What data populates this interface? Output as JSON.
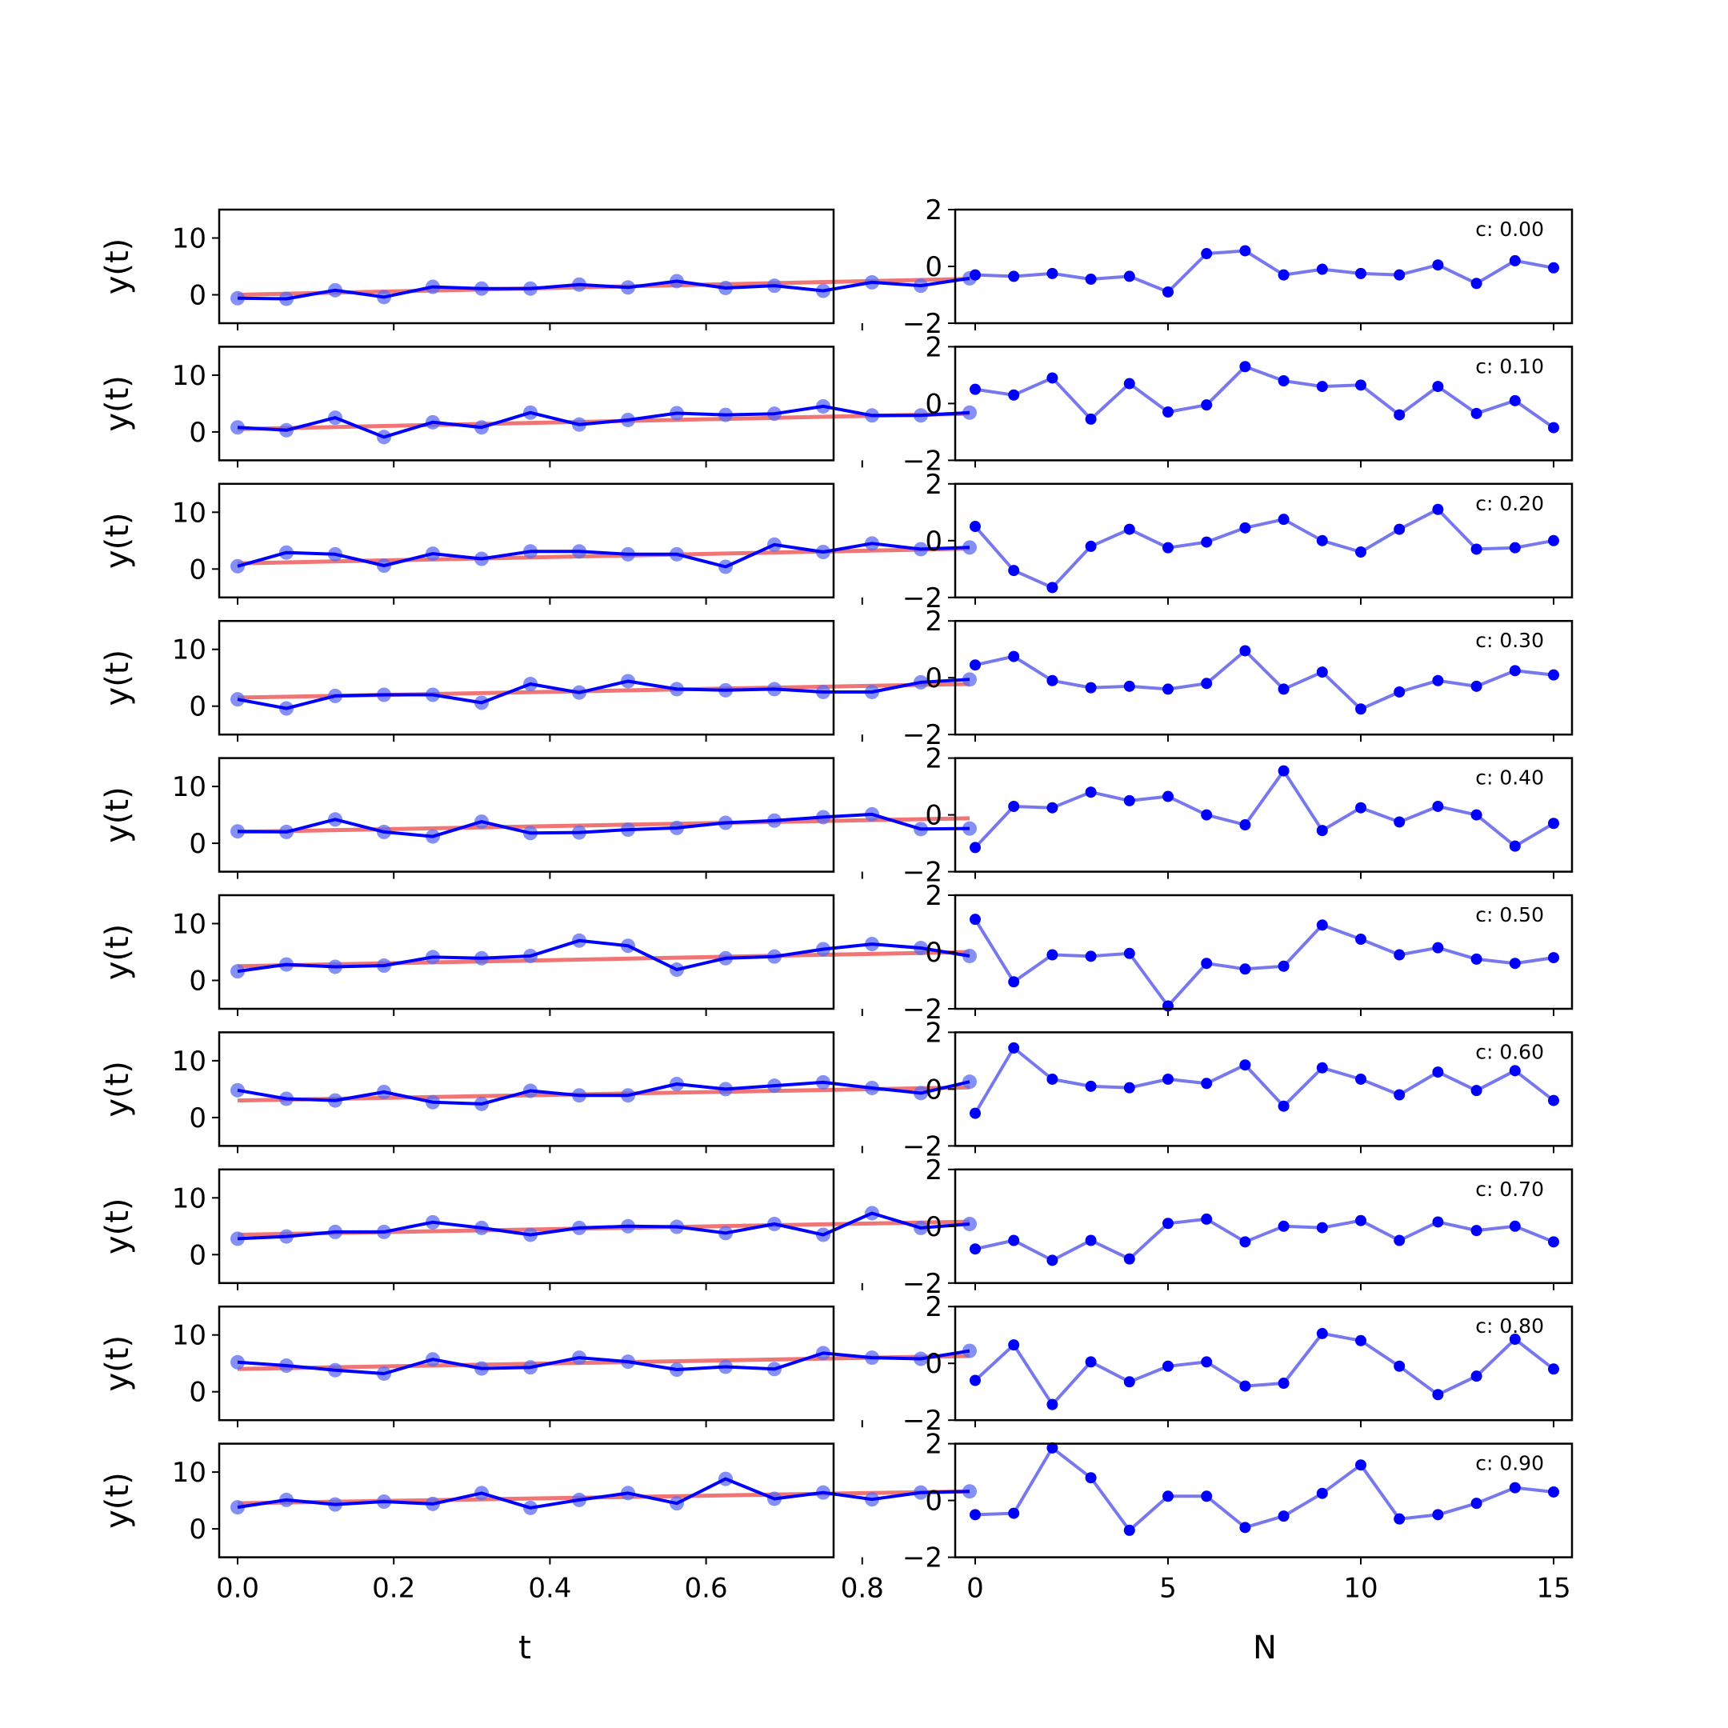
{
  "colors": {
    "observed": "#0000ff",
    "observed_markers": "#5b6bf2",
    "fit": "#f07575",
    "residual_line": "#7878ee",
    "residual_markers": "#0000ff"
  },
  "chart_data": [
    {
      "type": "line",
      "panel": "left",
      "ylabel": "y(t)",
      "xlabel": "t",
      "ylim": [
        -5,
        15
      ],
      "yticks": [
        0,
        10
      ],
      "xticks": [
        0.0,
        0.2,
        0.4,
        0.6,
        0.8
      ],
      "xtick_labels": [
        "0.0",
        "0.2",
        "0.4",
        "0.6",
        "0.8"
      ],
      "x": [
        0,
        0.0625,
        0.125,
        0.1875,
        0.25,
        0.3125,
        0.375,
        0.4375,
        0.5,
        0.5625,
        0.625,
        0.6875,
        0.75,
        0.8125,
        0.875,
        0.9375
      ],
      "rows": [
        {
          "observed": [
            -0.6,
            -0.7,
            0.8,
            -0.4,
            1.4,
            1.1,
            1.1,
            1.8,
            1.3,
            2.4,
            1.2,
            1.6,
            0.7,
            2.2,
            1.6,
            2.9
          ],
          "fit_start": 0.0,
          "fit_end": 2.8
        },
        {
          "observed": [
            0.8,
            0.3,
            2.5,
            -0.9,
            1.7,
            0.8,
            3.4,
            1.3,
            2.1,
            3.3,
            3.0,
            3.2,
            4.5,
            2.9,
            2.9,
            3.4
          ],
          "fit_start": 0.5,
          "fit_end": 3.2
        },
        {
          "observed": [
            0.5,
            2.9,
            2.6,
            0.6,
            2.7,
            1.8,
            3.1,
            3.1,
            2.6,
            2.6,
            0.4,
            4.3,
            3.0,
            4.5,
            3.5,
            3.8
          ],
          "fit_start": 1.0,
          "fit_end": 3.6
        },
        {
          "observed": [
            1.2,
            -0.4,
            1.8,
            2.0,
            2.0,
            0.6,
            3.9,
            2.4,
            4.4,
            3.0,
            2.8,
            3.0,
            2.5,
            2.5,
            4.2,
            4.7
          ],
          "fit_start": 1.5,
          "fit_end": 3.9
        },
        {
          "observed": [
            2.1,
            2.0,
            4.2,
            2.0,
            1.2,
            3.8,
            1.8,
            1.9,
            2.4,
            2.7,
            3.6,
            4.0,
            4.6,
            5.1,
            2.5,
            2.6
          ],
          "fit_start": 2.0,
          "fit_end": 4.4
        },
        {
          "observed": [
            1.6,
            2.8,
            2.4,
            2.6,
            4.1,
            3.9,
            4.3,
            7.0,
            6.1,
            1.9,
            3.9,
            4.2,
            5.5,
            6.4,
            5.7,
            4.3
          ],
          "fit_start": 2.5,
          "fit_end": 5.0
        },
        {
          "observed": [
            4.8,
            3.3,
            3.0,
            4.5,
            2.7,
            2.4,
            4.7,
            3.9,
            3.9,
            5.9,
            5.0,
            5.6,
            6.2,
            5.2,
            4.3,
            6.3
          ],
          "fit_start": 3.0,
          "fit_end": 5.3
        },
        {
          "observed": [
            2.8,
            3.2,
            4.0,
            4.0,
            5.7,
            4.7,
            3.5,
            4.7,
            5.0,
            4.9,
            3.8,
            5.4,
            3.5,
            7.3,
            4.7,
            5.4
          ],
          "fit_start": 3.5,
          "fit_end": 5.8
        },
        {
          "observed": [
            5.2,
            4.6,
            3.8,
            3.2,
            5.7,
            4.1,
            4.3,
            6.0,
            5.3,
            3.9,
            4.4,
            4.0,
            6.8,
            6.0,
            5.8,
            7.2
          ],
          "fit_start": 4.0,
          "fit_end": 6.3
        },
        {
          "observed": [
            3.8,
            5.1,
            4.3,
            4.8,
            4.4,
            6.3,
            3.7,
            5.1,
            6.3,
            4.5,
            8.8,
            5.3,
            6.4,
            5.2,
            6.4,
            6.6
          ],
          "fit_start": 4.5,
          "fit_end": 6.6
        }
      ]
    },
    {
      "type": "line",
      "panel": "right",
      "xlabel": "N",
      "ylim": [
        -2,
        2
      ],
      "yticks": [
        -2,
        0,
        2
      ],
      "xticks": [
        0,
        5,
        10,
        15
      ],
      "x": [
        0,
        1,
        2,
        3,
        4,
        5,
        6,
        7,
        8,
        9,
        10,
        11,
        12,
        13,
        14,
        15
      ],
      "rows": [
        {
          "label": "c: 0.00",
          "values": [
            -0.3,
            -0.35,
            -0.25,
            -0.45,
            -0.35,
            -0.9,
            0.45,
            0.55,
            -0.3,
            -0.1,
            -0.25,
            -0.3,
            0.05,
            -0.6,
            0.2,
            -0.05
          ]
        },
        {
          "label": "c: 0.10",
          "values": [
            0.5,
            0.3,
            0.9,
            -0.55,
            0.7,
            -0.3,
            -0.05,
            1.3,
            0.8,
            0.6,
            0.65,
            -0.4,
            0.6,
            -0.35,
            0.1,
            -0.85
          ]
        },
        {
          "label": "c: 0.20",
          "values": [
            0.5,
            -1.05,
            -1.65,
            -0.2,
            0.4,
            -0.25,
            -0.05,
            0.45,
            0.75,
            0.0,
            -0.4,
            0.4,
            1.1,
            -0.3,
            -0.25,
            0.0
          ]
        },
        {
          "label": "c: 0.30",
          "values": [
            0.45,
            0.75,
            -0.1,
            -0.35,
            -0.3,
            -0.4,
            -0.2,
            0.95,
            -0.4,
            0.2,
            -1.1,
            -0.5,
            -0.1,
            -0.3,
            0.25,
            0.1
          ]
        },
        {
          "label": "c: 0.40",
          "values": [
            -1.15,
            0.3,
            0.25,
            0.8,
            0.5,
            0.65,
            0.0,
            -0.35,
            1.55,
            -0.55,
            0.25,
            -0.25,
            0.3,
            0.0,
            -1.1,
            -0.3
          ]
        },
        {
          "label": "c: 0.50",
          "values": [
            1.15,
            -1.05,
            -0.1,
            -0.15,
            -0.05,
            -1.9,
            -0.4,
            -0.6,
            -0.5,
            0.95,
            0.45,
            -0.1,
            0.15,
            -0.25,
            -0.4,
            -0.2
          ]
        },
        {
          "label": "c: 0.60",
          "values": [
            -0.85,
            1.45,
            0.35,
            0.1,
            0.05,
            0.35,
            0.2,
            0.85,
            -0.6,
            0.75,
            0.35,
            -0.2,
            0.6,
            -0.05,
            0.65,
            -0.4
          ]
        },
        {
          "label": "c: 0.70",
          "values": [
            -0.8,
            -0.5,
            -1.2,
            -0.5,
            -1.15,
            0.1,
            0.25,
            -0.55,
            0.0,
            -0.05,
            0.2,
            -0.5,
            0.15,
            -0.15,
            0.0,
            -0.55
          ]
        },
        {
          "label": "c: 0.80",
          "values": [
            -0.6,
            0.65,
            -1.45,
            0.05,
            -0.65,
            -0.1,
            0.05,
            -0.8,
            -0.7,
            1.05,
            0.8,
            -0.1,
            -1.1,
            -0.45,
            0.85,
            -0.2
          ]
        },
        {
          "label": "c: 0.90",
          "values": [
            -0.5,
            -0.45,
            1.85,
            0.8,
            -1.05,
            0.15,
            0.15,
            -0.95,
            -0.55,
            0.25,
            1.25,
            -0.65,
            -0.5,
            -0.1,
            0.45,
            0.3
          ]
        }
      ]
    }
  ]
}
